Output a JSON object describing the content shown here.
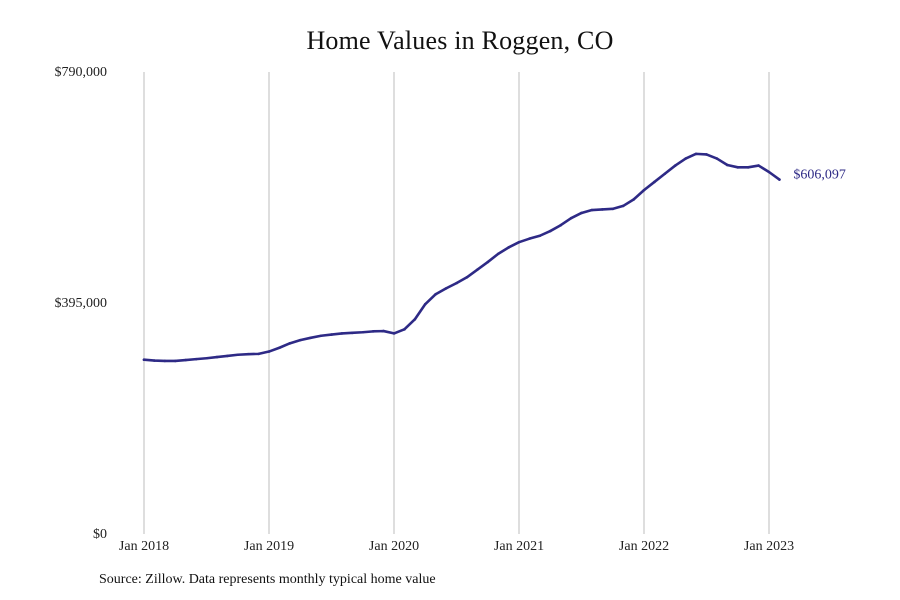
{
  "chart_data": {
    "type": "line",
    "title": "Home Values in Roggen, CO",
    "xlabel": "",
    "ylabel": "",
    "x": [
      "2018-01",
      "2018-02",
      "2018-03",
      "2018-04",
      "2018-05",
      "2018-06",
      "2018-07",
      "2018-08",
      "2018-09",
      "2018-10",
      "2018-11",
      "2018-12",
      "2019-01",
      "2019-02",
      "2019-03",
      "2019-04",
      "2019-05",
      "2019-06",
      "2019-07",
      "2019-08",
      "2019-09",
      "2019-10",
      "2019-11",
      "2019-12",
      "2020-01",
      "2020-02",
      "2020-03",
      "2020-04",
      "2020-05",
      "2020-06",
      "2020-07",
      "2020-08",
      "2020-09",
      "2020-10",
      "2020-11",
      "2020-12",
      "2021-01",
      "2021-02",
      "2021-03",
      "2021-04",
      "2021-05",
      "2021-06",
      "2021-07",
      "2021-08",
      "2021-09",
      "2021-10",
      "2021-11",
      "2021-12",
      "2022-01",
      "2022-02",
      "2022-03",
      "2022-04",
      "2022-05",
      "2022-06",
      "2022-07",
      "2022-08",
      "2022-09",
      "2022-10",
      "2022-11",
      "2022-12",
      "2023-01",
      "2023-02"
    ],
    "series": [
      {
        "values": [
          298000,
          296500,
          296000,
          296000,
          297500,
          299000,
          300500,
          302500,
          304500,
          306500,
          307500,
          308000,
          312000,
          318500,
          326000,
          331500,
          335500,
          339000,
          341000,
          343000,
          344000,
          345000,
          346500,
          347000,
          343000,
          350000,
          367000,
          393000,
          410000,
          420000,
          429000,
          439000,
          452000,
          465000,
          479000,
          490000,
          499000,
          505000,
          510000,
          518000,
          528000,
          540000,
          549000,
          554000,
          555000,
          556000,
          561000,
          572000,
          588000,
          602000,
          616000,
          630000,
          642000,
          650000,
          649000,
          642000,
          631000,
          627000,
          627000,
          630000,
          619000,
          606097
        ]
      }
    ],
    "ylim": [
      0,
      790000
    ],
    "y_ticks": [
      {
        "value": 0,
        "label": "$0"
      },
      {
        "value": 395000,
        "label": "$395,000"
      },
      {
        "value": 790000,
        "label": "$790,000"
      }
    ],
    "x_ticks": [
      {
        "x": "2018-01",
        "label": "Jan 2018"
      },
      {
        "x": "2019-01",
        "label": "Jan 2019"
      },
      {
        "x": "2020-01",
        "label": "Jan 2020"
      },
      {
        "x": "2021-01",
        "label": "Jan 2021"
      },
      {
        "x": "2022-01",
        "label": "Jan 2022"
      },
      {
        "x": "2023-01",
        "label": "Jan 2023"
      }
    ],
    "end_label": "$606,097",
    "grid": "vertical",
    "line_color": "#2e2a86",
    "gridline_color": "#bdbdbd"
  },
  "source_note": "Source: Zillow. Data represents monthly typical home value"
}
